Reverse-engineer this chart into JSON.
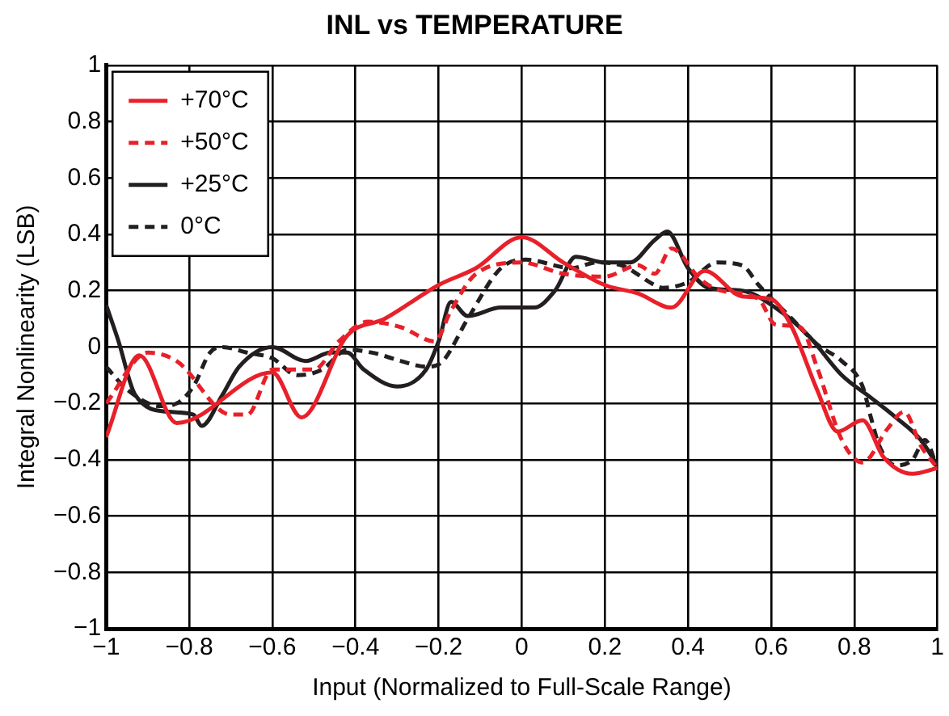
{
  "chart_data": {
    "type": "line",
    "title": "INL vs TEMPERATURE",
    "xlabel": "Input (Normalized to Full-Scale Range)",
    "ylabel": "Integral Nonlinearity (LSB)",
    "xlim": [
      -1,
      1
    ],
    "xticks": [
      {
        "value": -1,
        "label": "−1"
      },
      {
        "value": -0.8,
        "label": "−0.8"
      },
      {
        "value": -0.6,
        "label": "−0.6"
      },
      {
        "value": -0.4,
        "label": "−0.4"
      },
      {
        "value": -0.2,
        "label": "−0.2"
      },
      0,
      0.2,
      0.4,
      0.6,
      0.8,
      1
    ],
    "ylim": [
      -1,
      1
    ],
    "yticks": [
      {
        "value": -1,
        "label": "−1"
      },
      {
        "value": -0.8,
        "label": "−0.8"
      },
      {
        "value": -0.6,
        "label": "−0.6"
      },
      {
        "value": -0.4,
        "label": "−0.4"
      },
      {
        "value": -0.2,
        "label": "−0.2"
      },
      0,
      0.2,
      0.4,
      0.6,
      0.8,
      1
    ],
    "grid": true,
    "legend": "top left",
    "marker": "none",
    "series": [
      {
        "name": "+70°C",
        "color": "#e8202a",
        "line_style": "solid",
        "x": [
          -1,
          -0.92,
          -0.83,
          -0.6,
          -0.53,
          -0.42,
          -0.33,
          -0.2,
          -0.11,
          0,
          0.1,
          0.2,
          0.28,
          0.36,
          0.44,
          0.53,
          0.6,
          0.65,
          0.71,
          0.76,
          0.82,
          0.87,
          0.94,
          1
        ],
        "values": [
          -0.32,
          -0.03,
          -0.27,
          -0.09,
          -0.25,
          0.04,
          0.1,
          0.22,
          0.28,
          0.39,
          0.3,
          0.22,
          0.19,
          0.14,
          0.27,
          0.18,
          0.17,
          0.07,
          -0.15,
          -0.3,
          -0.26,
          -0.39,
          -0.45,
          -0.43
        ]
      },
      {
        "name": "+50°C",
        "color": "#e8202a",
        "line_style": "dashed",
        "x": [
          -1,
          -0.9,
          -0.83,
          -0.7,
          -0.66,
          -0.6,
          -0.5,
          -0.44,
          -0.37,
          -0.29,
          -0.21,
          -0.17,
          -0.11,
          0,
          0.1,
          0.2,
          0.28,
          0.32,
          0.36,
          0.43,
          0.48,
          0.57,
          0.61,
          0.67,
          0.71,
          0.77,
          0.82,
          0.88,
          0.92,
          0.96,
          1
        ],
        "values": [
          -0.2,
          -0.02,
          -0.05,
          -0.24,
          -0.24,
          -0.08,
          -0.08,
          0.02,
          0.09,
          0.07,
          0.02,
          0.13,
          0.26,
          0.3,
          0.26,
          0.25,
          0.29,
          0.26,
          0.35,
          0.24,
          0.2,
          0.17,
          0.08,
          0.07,
          -0.07,
          -0.33,
          -0.41,
          -0.29,
          -0.23,
          -0.35,
          -0.43
        ]
      },
      {
        "name": "+25°C",
        "color": "#231f20",
        "line_style": "solid",
        "x": [
          -1,
          -0.97,
          -0.93,
          -0.85,
          -0.79,
          -0.77,
          -0.72,
          -0.68,
          -0.6,
          -0.52,
          -0.46,
          -0.42,
          -0.38,
          -0.3,
          -0.23,
          -0.2,
          -0.17,
          -0.13,
          -0.05,
          0.03,
          0.08,
          0.13,
          0.2,
          0.26,
          0.32,
          0.35,
          0.4,
          0.45,
          0.53,
          0.61,
          0.69,
          0.77,
          0.84,
          0.9,
          0.96,
          1
        ],
        "values": [
          0.15,
          0.02,
          -0.17,
          -0.23,
          -0.24,
          -0.28,
          -0.17,
          -0.07,
          0,
          -0.05,
          -0.02,
          -0.02,
          -0.08,
          -0.14,
          -0.08,
          0.02,
          0.16,
          0.11,
          0.14,
          0.14,
          0.2,
          0.32,
          0.3,
          0.3,
          0.38,
          0.41,
          0.28,
          0.21,
          0.2,
          0.14,
          0.04,
          -0.1,
          -0.18,
          -0.25,
          -0.33,
          -0.42
        ]
      },
      {
        "name": "0°C",
        "color": "#231f20",
        "line_style": "dashed",
        "x": [
          -1,
          -0.95,
          -0.87,
          -0.83,
          -0.79,
          -0.75,
          -0.72,
          -0.66,
          -0.6,
          -0.54,
          -0.48,
          -0.42,
          -0.36,
          -0.29,
          -0.23,
          -0.19,
          -0.13,
          -0.05,
          0.01,
          0.12,
          0.18,
          0.24,
          0.32,
          0.34,
          0.4,
          0.47,
          0.53,
          0.57,
          0.65,
          0.71,
          0.77,
          0.82,
          0.84,
          0.86,
          0.9,
          0.94,
          0.97,
          1
        ],
        "values": [
          -0.07,
          -0.15,
          -0.21,
          -0.2,
          -0.14,
          -0.02,
          0,
          -0.02,
          -0.04,
          -0.1,
          -0.08,
          -0.01,
          -0.02,
          -0.05,
          -0.07,
          -0.05,
          0.1,
          0.28,
          0.31,
          0.28,
          0.3,
          0.29,
          0.22,
          0.21,
          0.23,
          0.3,
          0.29,
          0.22,
          0.1,
          0.01,
          -0.05,
          -0.14,
          -0.25,
          -0.35,
          -0.42,
          -0.4,
          -0.33,
          -0.43
        ]
      }
    ]
  }
}
